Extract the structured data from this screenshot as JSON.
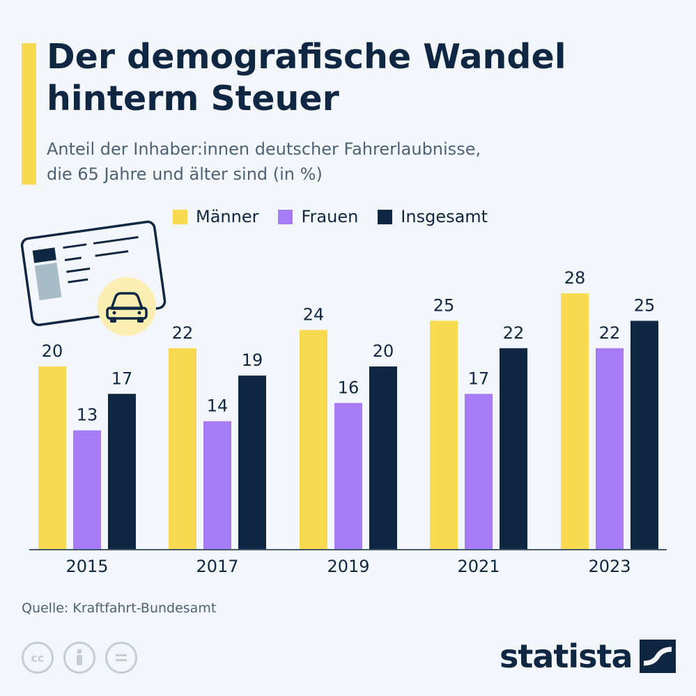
{
  "header": {
    "title": "Der demografische Wandel\nhinterm Steuer",
    "subtitle": "Anteil der Inhaber:innen deutscher Fahrerlaubnisse,\ndie 65 Jahre und älter sind (in %)"
  },
  "colors": {
    "maenner": "#f7da4f",
    "frauen": "#a67cf6",
    "insgesamt": "#0f2742",
    "accent": "#f7da4f"
  },
  "chart_data": {
    "type": "bar",
    "categories": [
      "2015",
      "2017",
      "2019",
      "2021",
      "2023"
    ],
    "series": [
      {
        "name": "Männer",
        "values": [
          20,
          22,
          24,
          25,
          28
        ]
      },
      {
        "name": "Frauen",
        "values": [
          13,
          14,
          16,
          17,
          22
        ]
      },
      {
        "name": "Insgesamt",
        "values": [
          17,
          19,
          20,
          22,
          25
        ]
      }
    ],
    "ylim": [
      0,
      28
    ],
    "grid": false,
    "legend_position": "top"
  },
  "footer": {
    "source": "Quelle: Kraftfahrt-Bundesamt",
    "brand": "statista"
  },
  "icons": [
    "driving-license-icon",
    "car-icon",
    "cc-icon",
    "by-icon",
    "nd-icon",
    "statista-logo-icon"
  ]
}
